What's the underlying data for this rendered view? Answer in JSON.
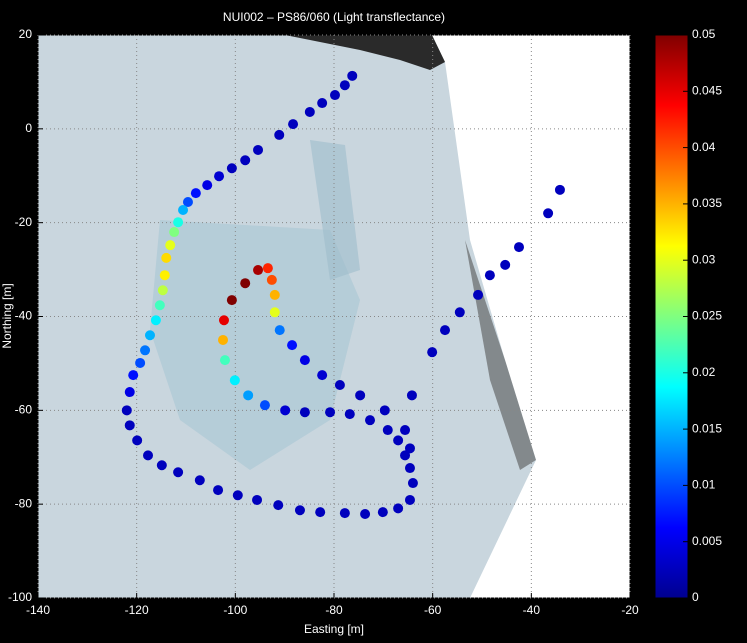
{
  "chart_data": {
    "type": "scatter",
    "title": "NUI002 – PS86/060 (Light transflectance)",
    "x_label": "Easting [m]",
    "y_label": "Northing [m]",
    "xlim": [
      -140,
      -20
    ],
    "xticks": [
      -140,
      -120,
      -100,
      -80,
      -60,
      -40,
      -20
    ],
    "ylim": [
      -100,
      20
    ],
    "yticks": [
      -100,
      -80,
      -60,
      -40,
      -20,
      0,
      20
    ],
    "grid": true,
    "colormap": "jet",
    "clim": [
      0,
      0.05
    ],
    "cticks": [
      0,
      0.005,
      0.01,
      0.015,
      0.02,
      0.025,
      0.03,
      0.035,
      0.04,
      0.045,
      0.05
    ],
    "x": [
      -76.3,
      -77.8,
      -79.8,
      -82.4,
      -84.9,
      -88.3,
      -91.1,
      -95.4,
      -98.0,
      -100.7,
      -103.3,
      -105.7,
      -108.0,
      -109.6,
      -110.6,
      -111.6,
      -112.4,
      -113.2,
      -114.0,
      -114.3,
      -114.7,
      -115.3,
      -116.1,
      -117.3,
      -118.3,
      -119.3,
      -120.7,
      -121.4,
      -122.0,
      -121.4,
      -119.9,
      -117.7,
      -114.9,
      -111.6,
      -107.2,
      -103.5,
      -99.5,
      -95.6,
      -91.3,
      -86.9,
      -82.8,
      -77.8,
      -73.7,
      -70.1,
      -67.0,
      -64.6,
      -64.0,
      -64.6,
      -65.6,
      -67.0,
      -69.1,
      -72.7,
      -76.8,
      -80.8,
      -85.9,
      -89.9,
      -94.0,
      -97.4,
      -100.1,
      -102.1,
      -102.5,
      -102.3,
      -100.7,
      -98.0,
      -95.4,
      -93.4,
      -92.6,
      -92.0,
      -92.0,
      -91.0,
      -88.5,
      -85.9,
      -82.4,
      -78.8,
      -74.7,
      -69.7,
      -65.6,
      -64.6,
      -64.2,
      -60.1,
      -57.5,
      -54.5,
      -50.8,
      -48.4,
      -45.3,
      -42.5,
      -36.6,
      -34.2
    ],
    "y": [
      11.3,
      9.3,
      7.2,
      5.5,
      3.6,
      1.0,
      -1.3,
      -4.5,
      -6.7,
      -8.4,
      -10.1,
      -12.0,
      -13.7,
      -15.6,
      -17.3,
      -19.9,
      -22.0,
      -24.8,
      -27.5,
      -31.2,
      -34.4,
      -37.6,
      -40.8,
      -44.0,
      -47.2,
      -49.9,
      -52.5,
      -56.1,
      -60.0,
      -63.2,
      -66.4,
      -69.6,
      -71.7,
      -73.2,
      -74.9,
      -77.0,
      -78.1,
      -79.1,
      -80.2,
      -81.3,
      -81.7,
      -81.9,
      -82.1,
      -81.7,
      -80.9,
      -79.1,
      -75.5,
      -72.3,
      -69.6,
      -66.4,
      -64.2,
      -62.1,
      -60.8,
      -60.4,
      -60.4,
      -60.0,
      -58.9,
      -56.8,
      -53.6,
      -49.3,
      -45.0,
      -40.8,
      -36.5,
      -32.9,
      -30.1,
      -29.7,
      -32.2,
      -35.4,
      -39.1,
      -42.9,
      -46.1,
      -49.3,
      -52.5,
      -54.6,
      -56.8,
      -60.0,
      -64.2,
      -68.1,
      -56.8,
      -47.6,
      -42.9,
      -39.1,
      -35.4,
      -31.2,
      -29.0,
      -25.2,
      -18.0,
      -13.0
    ],
    "values": [
      0.003,
      0.003,
      0.003,
      0.003,
      0.003,
      0.003,
      0.003,
      0.003,
      0.003,
      0.003,
      0.004,
      0.005,
      0.007,
      0.01,
      0.015,
      0.02,
      0.025,
      0.03,
      0.033,
      0.032,
      0.028,
      0.022,
      0.018,
      0.015,
      0.012,
      0.01,
      0.007,
      0.005,
      0.003,
      0.003,
      0.003,
      0.003,
      0.003,
      0.003,
      0.003,
      0.003,
      0.003,
      0.003,
      0.003,
      0.003,
      0.003,
      0.003,
      0.003,
      0.003,
      0.003,
      0.003,
      0.003,
      0.003,
      0.003,
      0.003,
      0.003,
      0.003,
      0.003,
      0.003,
      0.003,
      0.004,
      0.01,
      0.014,
      0.018,
      0.022,
      0.035,
      0.045,
      0.05,
      0.05,
      0.048,
      0.042,
      0.04,
      0.035,
      0.03,
      0.012,
      0.007,
      0.005,
      0.004,
      0.003,
      0.003,
      0.003,
      0.003,
      0.003,
      0.003,
      0.003,
      0.003,
      0.003,
      0.003,
      0.003,
      0.003,
      0.003,
      0.003,
      0.003
    ]
  }
}
